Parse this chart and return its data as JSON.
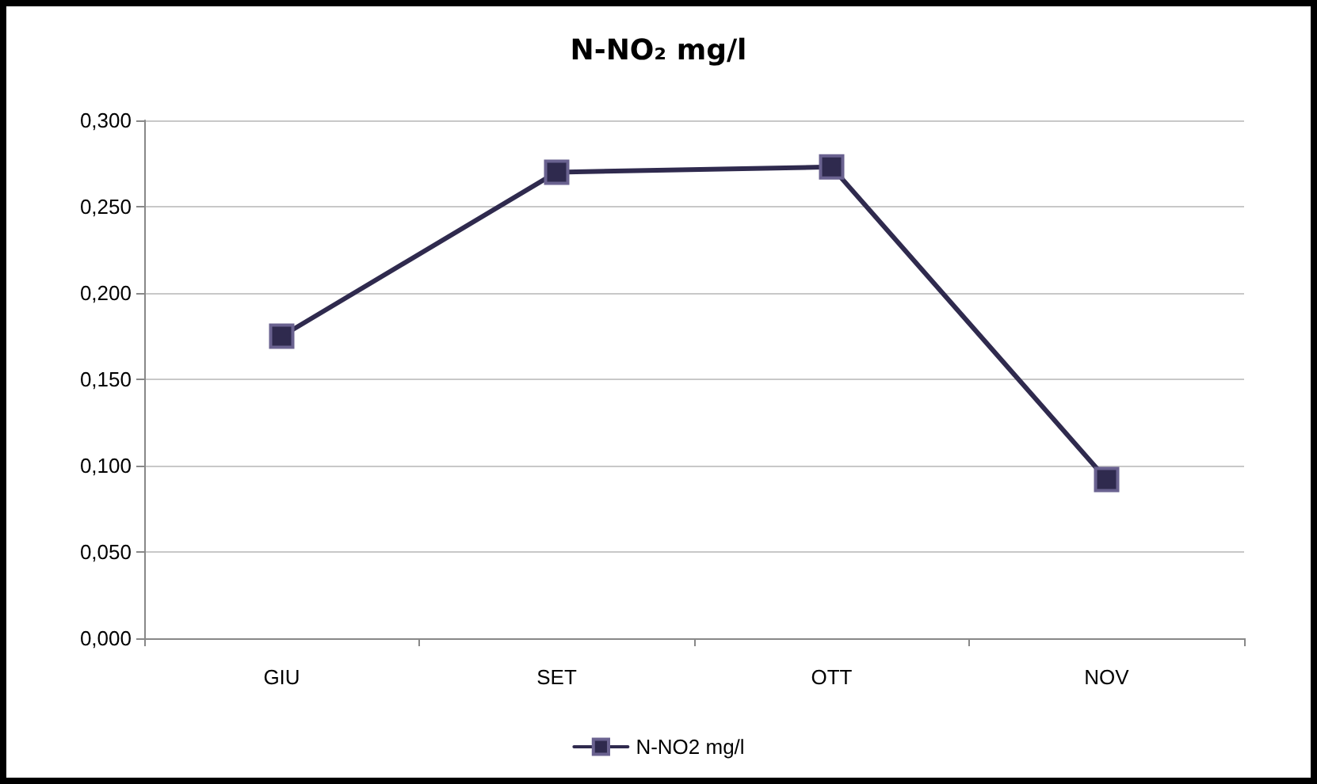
{
  "chart_data": {
    "type": "line",
    "title": "N-NO₂ mg/l",
    "categories": [
      "GIU",
      "SET",
      "OTT",
      "NOV"
    ],
    "series": [
      {
        "name": "N-NO2 mg/l",
        "color": "#2f2a4e",
        "values": [
          0.175,
          0.27,
          0.273,
          0.092
        ]
      }
    ],
    "ylim": [
      0,
      0.3
    ],
    "yticks": [
      {
        "value": 0,
        "label": "0,000"
      },
      {
        "value": 0.05,
        "label": "0,050"
      },
      {
        "value": 0.1,
        "label": "0,100"
      },
      {
        "value": 0.15,
        "label": "0,150"
      },
      {
        "value": 0.2,
        "label": "0,200"
      },
      {
        "value": 0.25,
        "label": "0,250"
      },
      {
        "value": 0.3,
        "label": "0,300"
      }
    ],
    "grid": "y",
    "legend": "bottom",
    "marker": "square",
    "line_style": "solid"
  }
}
